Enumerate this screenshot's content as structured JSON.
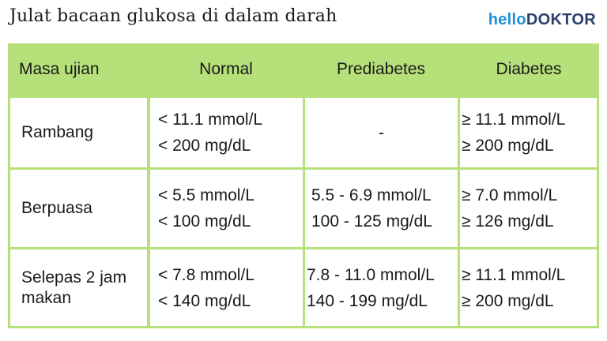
{
  "title": "Julat bacaan glukosa di dalam darah",
  "logo": {
    "part1": "hello",
    "part2": "DOKTOR",
    "accent": "#1e90d6",
    "brand": "#2a3f6a"
  },
  "colors": {
    "header_bg": "#b5e07a",
    "grid": "#b5e07a",
    "cell_bg": "#ffffff"
  },
  "table": {
    "headers": [
      "Masa ujian",
      "Normal",
      "Prediabetes",
      "Diabetes"
    ],
    "rows": [
      {
        "label": "Rambang",
        "normal": [
          "< 11.1 mmol/L",
          "< 200 mg/dL"
        ],
        "prediabetes": [
          "-"
        ],
        "diabetes": [
          "≥ 11.1 mmol/L",
          "≥ 200 mg/dL"
        ]
      },
      {
        "label": "Berpuasa",
        "normal": [
          "< 5.5 mmol/L",
          "< 100 mg/dL"
        ],
        "prediabetes": [
          "5.5 - 6.9 mmol/L",
          "100 - 125 mg/dL"
        ],
        "diabetes": [
          "≥ 7.0 mmol/L",
          "≥ 126 mg/dL"
        ]
      },
      {
        "label": "Selepas 2 jam makan",
        "normal": [
          "< 7.8 mmol/L",
          "< 140 mg/dL"
        ],
        "prediabetes": [
          "7.8 - 11.0 mmol/L",
          "140 - 199 mg/dL"
        ],
        "diabetes": [
          "≥ 11.1 mmol/L",
          "≥ 200 mg/dL"
        ]
      }
    ]
  }
}
